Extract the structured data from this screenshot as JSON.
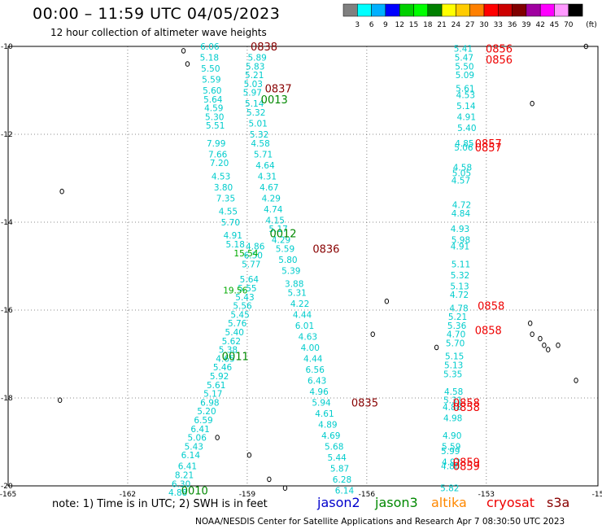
{
  "title": "00:00 – 11:59 UTC 04/05/2023",
  "subtitle": "12 hour collection of altimeter wave heights",
  "colorbar": {
    "ticks": [
      "3",
      "6",
      "9",
      "12",
      "15",
      "18",
      "21",
      "24",
      "27",
      "30",
      "33",
      "36",
      "39",
      "42",
      "45",
      "70"
    ],
    "unit": "(ft)",
    "colors": [
      "#808080",
      "#00ffff",
      "#00b0ff",
      "#0000ff",
      "#00d000",
      "#00ff00",
      "#008000",
      "#ffff00",
      "#ffcc00",
      "#ff8000",
      "#ff0000",
      "#cc0000",
      "#800000",
      "#a000a0",
      "#ff00ff",
      "#ff99ff",
      "#000000"
    ]
  },
  "axes": {
    "x_ticks": [
      "-165",
      "-162",
      "-159",
      "-156",
      "-153",
      "-15"
    ],
    "y_ticks": [
      "-10",
      "-12",
      "-14",
      "-16",
      "-18",
      "-20"
    ]
  },
  "note": "note:  1) Time is in UTC;  2) SWH is in feet",
  "satellites": [
    {
      "name": "jason2",
      "color": "#0000cc"
    },
    {
      "name": "jason3",
      "color": "#008800"
    },
    {
      "name": "altika",
      "color": "#ff8800"
    },
    {
      "name": "cryosat",
      "color": "#ee0000"
    },
    {
      "name": "s3a",
      "color": "#880000"
    }
  ],
  "credit": "NOAA/NESDIS Center for Satellite Applications and Research    Apr  7 08:30:50 UTC 2023",
  "tracks": [
    {
      "color": "#00cccc",
      "labels": [
        [
          "6.06",
          -159.94,
          -10.0
        ],
        [
          "5.18",
          -159.95,
          -10.25
        ],
        [
          "5.50",
          -159.92,
          -10.5
        ],
        [
          "5.59",
          -159.9,
          -10.75
        ],
        [
          "5.60",
          -159.88,
          -11.0
        ],
        [
          "5.64",
          -159.86,
          -11.2
        ],
        [
          "4.59",
          -159.84,
          -11.4
        ],
        [
          "5.30",
          -159.82,
          -11.6
        ],
        [
          "5.51",
          -159.8,
          -11.8
        ],
        [
          "7.99",
          -159.78,
          -12.2
        ],
        [
          "7.66",
          -159.74,
          -12.45
        ],
        [
          "7.20",
          -159.7,
          -12.65
        ],
        [
          "4.53",
          -159.66,
          -12.95
        ],
        [
          "3.80",
          -159.6,
          -13.2
        ],
        [
          "7.35",
          -159.54,
          -13.45
        ],
        [
          "4.55",
          -159.48,
          -13.75
        ],
        [
          "5.70",
          -159.42,
          -14.0
        ],
        [
          "4.91",
          -159.36,
          -14.3
        ],
        [
          "5.18",
          -159.3,
          -14.5
        ]
      ]
    },
    {
      "color": "#00cccc",
      "labels": [
        [
          "5.89",
          -158.75,
          -10.25
        ],
        [
          "5.83",
          -158.8,
          -10.45
        ],
        [
          "5.21",
          -158.82,
          -10.65
        ],
        [
          "5.03",
          -158.85,
          -10.85
        ],
        [
          "5.97",
          -158.87,
          -11.05
        ],
        [
          "5.14",
          -158.82,
          -11.3
        ],
        [
          "5.32",
          -158.78,
          -11.5
        ],
        [
          "5.01",
          -158.73,
          -11.75
        ],
        [
          "5.32",
          -158.7,
          -12.0
        ],
        [
          "4.58",
          -158.67,
          -12.2
        ],
        [
          "5.71",
          -158.6,
          -12.45
        ],
        [
          "4.64",
          -158.55,
          -12.7
        ],
        [
          "4.31",
          -158.5,
          -12.95
        ],
        [
          "4.67",
          -158.45,
          -13.2
        ],
        [
          "4.29",
          -158.4,
          -13.45
        ],
        [
          "4.74",
          -158.35,
          -13.7
        ],
        [
          "4.15",
          -158.3,
          -13.95
        ],
        [
          "5.17",
          -158.22,
          -14.15
        ],
        [
          "4.29",
          -158.15,
          -14.4
        ],
        [
          "5.59",
          -158.05,
          -14.6
        ],
        [
          "5.80",
          -157.98,
          -14.85
        ],
        [
          "5.39",
          -157.9,
          -15.1
        ],
        [
          "3.88",
          -157.82,
          -15.4
        ],
        [
          "5.31",
          -157.75,
          -15.6
        ],
        [
          "4.22",
          -157.68,
          -15.85
        ],
        [
          "4.44",
          -157.62,
          -16.1
        ],
        [
          "6.01",
          -157.56,
          -16.35
        ],
        [
          "4.63",
          -157.48,
          -16.6
        ],
        [
          "4.00",
          -157.42,
          -16.85
        ],
        [
          "4.44",
          -157.35,
          -17.1
        ],
        [
          "6.56",
          -157.3,
          -17.35
        ],
        [
          "6.43",
          -157.25,
          -17.6
        ],
        [
          "4.96",
          -157.2,
          -17.85
        ],
        [
          "5.94",
          -157.14,
          -18.1
        ],
        [
          "4.61",
          -157.06,
          -18.35
        ],
        [
          "4.89",
          -156.98,
          -18.6
        ],
        [
          "4.69",
          -156.9,
          -18.85
        ],
        [
          "5.68",
          -156.82,
          -19.1
        ],
        [
          "5.44",
          -156.75,
          -19.35
        ],
        [
          "5.87",
          -156.68,
          -19.6
        ],
        [
          "6.28",
          -156.62,
          -19.85
        ],
        [
          "6.14",
          -156.56,
          -20.1
        ]
      ]
    },
    {
      "color": "#00cccc",
      "labels": [
        [
          "4.86",
          -158.8,
          -14.55
        ],
        [
          "6.50",
          -158.85,
          -14.75
        ],
        [
          "5.77",
          -158.9,
          -14.95
        ],
        [
          "5.64",
          -158.95,
          -15.3
        ],
        [
          "5.55",
          -159.0,
          -15.5
        ],
        [
          "5.43",
          -159.06,
          -15.7
        ],
        [
          "5.56",
          -159.12,
          -15.9
        ],
        [
          "5.45",
          -159.18,
          -16.1
        ],
        [
          "5.76",
          -159.25,
          -16.3
        ],
        [
          "5.40",
          -159.32,
          -16.5
        ],
        [
          "5.62",
          -159.4,
          -16.7
        ],
        [
          "5.38",
          -159.48,
          -16.9
        ],
        [
          "4.65",
          -159.55,
          -17.1
        ],
        [
          "5.46",
          -159.62,
          -17.3
        ],
        [
          "5.92",
          -159.7,
          -17.5
        ],
        [
          "5.61",
          -159.78,
          -17.7
        ],
        [
          "5.17",
          -159.86,
          -17.9
        ],
        [
          "6.98",
          -159.94,
          -18.1
        ],
        [
          "5.20",
          -160.02,
          -18.3
        ],
        [
          "6.59",
          -160.1,
          -18.5
        ],
        [
          "6.41",
          -160.18,
          -18.7
        ],
        [
          "5.06",
          -160.26,
          -18.9
        ],
        [
          "5.43",
          -160.34,
          -19.1
        ],
        [
          "6.14",
          -160.42,
          -19.3
        ],
        [
          "6.41",
          -160.5,
          -19.55
        ],
        [
          "8.21",
          -160.58,
          -19.75
        ],
        [
          "6.30",
          -160.66,
          -19.95
        ],
        [
          "4.88",
          -160.74,
          -20.15
        ]
      ]
    },
    {
      "color": "#00cccc",
      "labels": [
        [
          "5.41",
          -153.58,
          -10.05
        ],
        [
          "5.47",
          -153.56,
          -10.25
        ],
        [
          "5.50",
          -153.55,
          -10.45
        ],
        [
          "5.09",
          -153.54,
          -10.65
        ],
        [
          "5.61",
          -153.53,
          -10.95
        ],
        [
          "4.53",
          -153.52,
          -11.1
        ],
        [
          "5.14",
          -153.51,
          -11.35
        ],
        [
          "4.91",
          -153.5,
          -11.6
        ],
        [
          "5.40",
          -153.49,
          -11.85
        ],
        [
          "4.85",
          -153.55,
          -12.2
        ],
        [
          "5.06",
          -153.57,
          -12.3
        ],
        [
          "4.58",
          -153.6,
          -12.75
        ],
        [
          "5.05",
          -153.62,
          -12.88
        ],
        [
          "4.57",
          -153.64,
          -13.05
        ],
        [
          "4.72",
          -153.62,
          -13.6
        ],
        [
          "4.84",
          -153.64,
          -13.8
        ],
        [
          "4.93",
          -153.66,
          -14.15
        ],
        [
          "5.98",
          -153.64,
          -14.4
        ],
        [
          "4.91",
          -153.66,
          -14.55
        ],
        [
          "5.11",
          -153.64,
          -14.95
        ],
        [
          "5.32",
          -153.66,
          -15.2
        ],
        [
          "5.13",
          -153.67,
          -15.45
        ],
        [
          "4.72",
          -153.68,
          -15.65
        ],
        [
          "4.78",
          -153.69,
          -15.95
        ],
        [
          "5.21",
          -153.72,
          -16.15
        ],
        [
          "5.36",
          -153.74,
          -16.35
        ],
        [
          "4.70",
          -153.76,
          -16.55
        ],
        [
          "5.70",
          -153.78,
          -16.75
        ],
        [
          "5.15",
          -153.8,
          -17.05
        ],
        [
          "5.13",
          -153.82,
          -17.25
        ],
        [
          "5.35",
          -153.84,
          -17.45
        ],
        [
          "4.58",
          -153.82,
          -17.85
        ],
        [
          "5.31",
          -153.84,
          -18.05
        ],
        [
          "4.88",
          -153.86,
          -18.2
        ],
        [
          "4.98",
          -153.84,
          -18.45
        ],
        [
          "4.90",
          -153.86,
          -18.85
        ],
        [
          "5.59",
          -153.88,
          -19.1
        ],
        [
          "5.99",
          -153.9,
          -19.2
        ],
        [
          "4.92",
          -153.88,
          -19.45
        ],
        [
          "4.86",
          -153.9,
          -19.55
        ],
        [
          "5.82",
          -153.92,
          -20.05
        ]
      ]
    },
    {
      "color": "#00aa00",
      "labels": [
        [
          "15.54",
          -159.03,
          -14.7
        ],
        [
          "19.56",
          -159.3,
          -15.55
        ]
      ]
    }
  ],
  "time_labels": [
    {
      "text": "0838",
      "lon": -158.58,
      "lat": -10.0,
      "color": "#880000"
    },
    {
      "text": "0837",
      "lon": -158.22,
      "lat": -10.95,
      "color": "#880000"
    },
    {
      "text": "0013",
      "lon": -158.32,
      "lat": -11.2,
      "color": "#008800"
    },
    {
      "text": "0012",
      "lon": -158.1,
      "lat": -14.25,
      "color": "#008800"
    },
    {
      "text": "0836",
      "lon": -157.02,
      "lat": -14.6,
      "color": "#880000"
    },
    {
      "text": "0011",
      "lon": -159.3,
      "lat": -17.05,
      "color": "#008800"
    },
    {
      "text": "0835",
      "lon": -156.05,
      "lat": -18.1,
      "color": "#880000"
    },
    {
      "text": "0010",
      "lon": -160.32,
      "lat": -20.1,
      "color": "#008800"
    },
    {
      "text": "0856",
      "lon": -152.68,
      "lat": -10.05,
      "color": "#ee0000"
    },
    {
      "text": "0856",
      "lon": -152.68,
      "lat": -10.3,
      "color": "#ee0000"
    },
    {
      "text": "0857",
      "lon": -152.95,
      "lat": -12.2,
      "color": "#ee0000"
    },
    {
      "text": "0857",
      "lon": -152.95,
      "lat": -12.3,
      "color": "#ee0000"
    },
    {
      "text": "0858",
      "lon": -152.88,
      "lat": -15.9,
      "color": "#ee0000"
    },
    {
      "text": "0858",
      "lon": -152.95,
      "lat": -16.45,
      "color": "#ee0000"
    },
    {
      "text": "0858",
      "lon": -153.5,
      "lat": -18.1,
      "color": "#ee0000"
    },
    {
      "text": "0858",
      "lon": -153.5,
      "lat": -18.2,
      "color": "#ee0000"
    },
    {
      "text": "0859",
      "lon": -153.5,
      "lat": -19.45,
      "color": "#ee0000"
    },
    {
      "text": "0859",
      "lon": -153.5,
      "lat": -19.55,
      "color": "#ee0000"
    }
  ],
  "islands": [
    {
      "lon": -160.6,
      "lat": -10.1
    },
    {
      "lon": -160.5,
      "lat": -10.4
    },
    {
      "lon": -163.65,
      "lat": -13.3
    },
    {
      "lon": -151.85,
      "lat": -11.3
    },
    {
      "lon": -155.5,
      "lat": -15.8
    },
    {
      "lon": -155.85,
      "lat": -16.55
    },
    {
      "lon": -154.25,
      "lat": -16.85
    },
    {
      "lon": -151.9,
      "lat": -16.3
    },
    {
      "lon": -151.85,
      "lat": -16.55
    },
    {
      "lon": -151.65,
      "lat": -16.65
    },
    {
      "lon": -151.55,
      "lat": -16.8
    },
    {
      "lon": -151.45,
      "lat": -16.9
    },
    {
      "lon": -151.2,
      "lat": -16.8
    },
    {
      "lon": -150.75,
      "lat": -17.6
    },
    {
      "lon": -163.7,
      "lat": -18.05
    },
    {
      "lon": -159.75,
      "lat": -18.9
    },
    {
      "lon": -158.95,
      "lat": -19.3
    },
    {
      "lon": -158.45,
      "lat": -19.85
    },
    {
      "lon": -158.05,
      "lat": -20.05
    },
    {
      "lon": -150.5,
      "lat": -10.0
    }
  ]
}
